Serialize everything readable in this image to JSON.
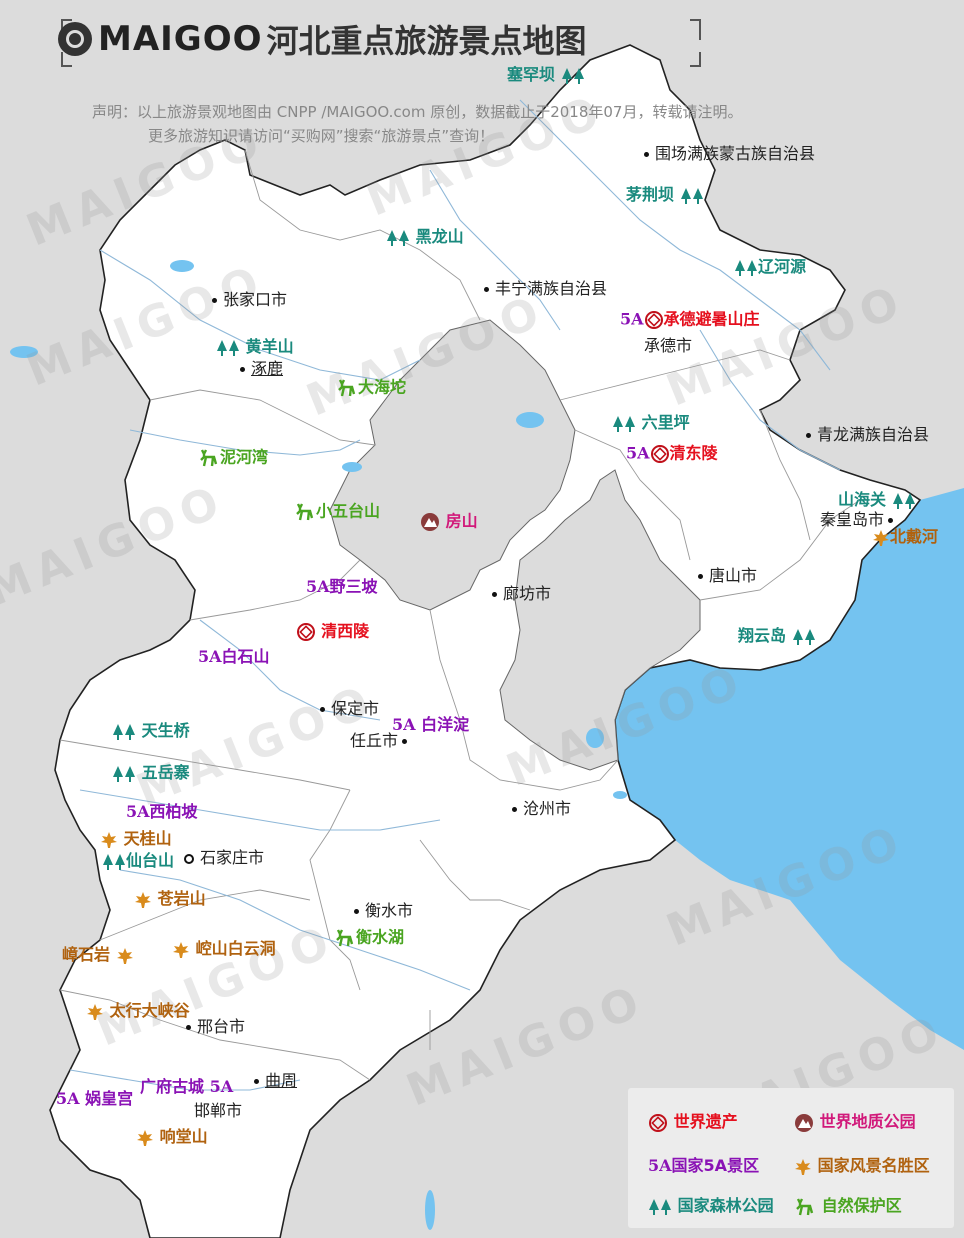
{
  "title": {
    "logo_text": "MAIGOO",
    "name": "河北重点旅游景点地图"
  },
  "declaration": {
    "line1": "声明：以上旅游景观地图由 CNPP /MAIGOO.com 原创，数据截止于2018年07月，转载请注明。",
    "line2": "更多旅游知识请访问“买购网”搜索“旅游景点”查询！"
  },
  "watermark": "MAIGOO",
  "colors": {
    "land": "#ffffff",
    "outside": "#dcdcdc",
    "sea": "#74c3f0",
    "forest": "#1a8a7e",
    "reserve": "#4aa521",
    "fivea": "#8a12b5",
    "heritage": "#e5101e",
    "scenic": "#b0620f",
    "geo": "#d1197a"
  },
  "cities": {
    "weichang": "围场满族蒙古族自治县",
    "fengning": "丰宁满族自治县",
    "zhangjiakou": "张家口市",
    "zhuolu": "涿鹿",
    "chengde": "承德市",
    "qinglong": "青龙满族自治县",
    "qinhuangdao": "秦皇岛市",
    "tangshan": "唐山市",
    "langfang": "廊坊市",
    "baoding": "保定市",
    "renqiu": "任丘市",
    "cangzhou": "沧州市",
    "shijiazhuang": "石家庄市",
    "hengshui": "衡水市",
    "xingtai": "邢台市",
    "qufu": "曲周",
    "handan": "邯郸市"
  },
  "spots": {
    "saihanba": "塞罕坝",
    "maojingba": "茅荆坝",
    "heilongshan": "黑龙山",
    "liaoheyuan": "辽河源",
    "huangyangshan": "黄羊山",
    "dahaituo": "大海坨",
    "nihewan": "泥河湾",
    "xiaowutaishan": "小五台山",
    "fangshan": "房山",
    "bishushanzhuang": "承德避暑山庄",
    "liulipping": "六里坪",
    "qingdongling": "清东陵",
    "shanhaiguan": "山海关",
    "beidaihe": "北戴河",
    "xiangyundao": "翔云岛",
    "yesanpo": "野三坡",
    "qingxiling": "清西陵",
    "baishishan": "白石山",
    "baiyangdian": "白洋淀",
    "tianshengqiao": "天生桥",
    "wuyuezhai": "五岳寨",
    "xibaipo": "西柏坡",
    "tianguishan": "天桂山",
    "xiantaishan": "仙台山",
    "cangyanshan": "苍岩山",
    "zhangshiyan": "嶂石岩",
    "kongshanbaiyundong": "崆山白云洞",
    "hengshuihu": "衡水湖",
    "taihangdaxiagu": "太行大峡谷",
    "guangfugucheng": "广府古城",
    "wahuanggong": "娲皇宫",
    "xiangtangshan": "响堂山"
  },
  "badge_5a": "5A",
  "legend": {
    "heritage": "世界遗产",
    "geo_park": "世界地质公园",
    "fivea": "国家5A景区",
    "scenic": "国家风景名胜区",
    "forest": "国家森林公园",
    "reserve": "自然保护区"
  }
}
